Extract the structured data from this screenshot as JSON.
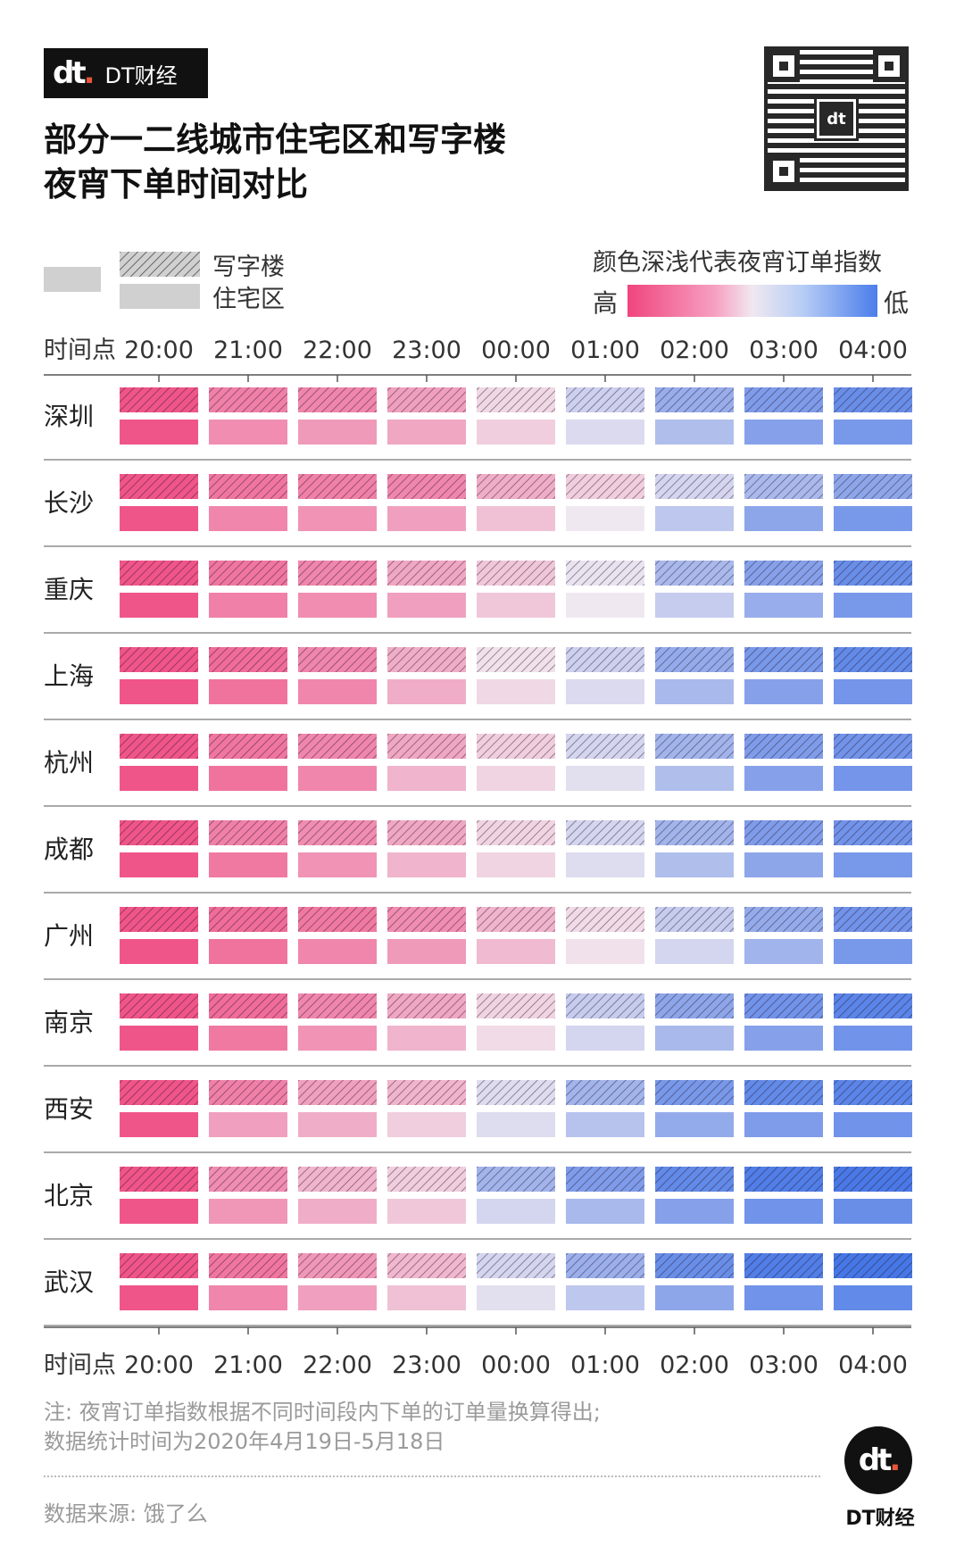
{
  "brand": {
    "logo": "dt",
    "name": "DT财经"
  },
  "title_line1": "部分一二线城市住宅区和写字楼",
  "title_line2": "夜宵下单时间对比",
  "legend": {
    "office": "写字楼",
    "residential": "住宅区"
  },
  "scale": {
    "title": "颜色深浅代表夜宵订单指数",
    "high": "高",
    "low": "低"
  },
  "footnote_line1": "注: 夜宵订单指数根据不同时间段内下单的订单量换算得出;",
  "footnote_line2": "数据统计时间为2020年4月19日-5月18日",
  "source": "数据来源: 饿了么",
  "badge_label": "DT财经",
  "colors": {
    "high": "#f0457e",
    "mid": "#f0e8f0",
    "low": "#3f72e6",
    "legend_gray": "#d0d0d0"
  },
  "chart_data": {
    "type": "heatmap",
    "x_label": "时间点",
    "times": [
      "20:00",
      "21:00",
      "22:00",
      "23:00",
      "00:00",
      "01:00",
      "02:00",
      "03:00",
      "04:00"
    ],
    "series_types": [
      "写字楼",
      "住宅区"
    ],
    "cities": [
      {
        "name": "深圳",
        "office": [
          0.95,
          0.82,
          0.8,
          0.72,
          0.55,
          0.4,
          0.25,
          0.18,
          0.12
        ],
        "residential": [
          0.95,
          0.78,
          0.74,
          0.7,
          0.58,
          0.44,
          0.32,
          0.2,
          0.16
        ]
      },
      {
        "name": "长沙",
        "office": [
          0.95,
          0.85,
          0.82,
          0.8,
          0.68,
          0.58,
          0.42,
          0.3,
          0.22
        ],
        "residential": [
          0.95,
          0.8,
          0.76,
          0.72,
          0.62,
          0.5,
          0.36,
          0.22,
          0.16
        ]
      },
      {
        "name": "重庆",
        "office": [
          0.95,
          0.85,
          0.8,
          0.7,
          0.6,
          0.48,
          0.3,
          0.2,
          0.12
        ],
        "residential": [
          0.95,
          0.82,
          0.78,
          0.72,
          0.6,
          0.5,
          0.38,
          0.25,
          0.16
        ]
      },
      {
        "name": "上海",
        "office": [
          0.95,
          0.88,
          0.8,
          0.68,
          0.52,
          0.4,
          0.24,
          0.16,
          0.1
        ],
        "residential": [
          0.95,
          0.86,
          0.8,
          0.68,
          0.55,
          0.44,
          0.3,
          0.2,
          0.15
        ]
      },
      {
        "name": "杭州",
        "office": [
          0.95,
          0.85,
          0.8,
          0.7,
          0.58,
          0.42,
          0.28,
          0.18,
          0.14
        ],
        "residential": [
          0.95,
          0.86,
          0.8,
          0.66,
          0.56,
          0.46,
          0.32,
          0.2,
          0.15
        ]
      },
      {
        "name": "成都",
        "office": [
          0.95,
          0.82,
          0.78,
          0.7,
          0.56,
          0.42,
          0.28,
          0.18,
          0.14
        ],
        "residential": [
          0.95,
          0.84,
          0.76,
          0.66,
          0.56,
          0.45,
          0.32,
          0.22,
          0.16
        ]
      },
      {
        "name": "广州",
        "office": [
          0.95,
          0.88,
          0.84,
          0.78,
          0.66,
          0.54,
          0.38,
          0.24,
          0.14
        ],
        "residential": [
          0.95,
          0.86,
          0.8,
          0.74,
          0.64,
          0.52,
          0.42,
          0.28,
          0.16
        ]
      },
      {
        "name": "南京",
        "office": [
          0.95,
          0.88,
          0.8,
          0.7,
          0.56,
          0.38,
          0.22,
          0.14,
          0.08
        ],
        "residential": [
          0.95,
          0.84,
          0.76,
          0.66,
          0.54,
          0.42,
          0.3,
          0.2,
          0.14
        ]
      },
      {
        "name": "西安",
        "office": [
          0.95,
          0.82,
          0.72,
          0.66,
          0.45,
          0.28,
          0.16,
          0.1,
          0.08
        ],
        "residential": [
          0.95,
          0.72,
          0.68,
          0.58,
          0.45,
          0.34,
          0.24,
          0.18,
          0.14
        ]
      },
      {
        "name": "北京",
        "office": [
          0.95,
          0.78,
          0.66,
          0.58,
          0.28,
          0.18,
          0.1,
          0.05,
          0.03
        ],
        "residential": [
          0.95,
          0.75,
          0.68,
          0.6,
          0.42,
          0.3,
          0.2,
          0.14,
          0.12
        ]
      },
      {
        "name": "武汉",
        "office": [
          0.95,
          0.85,
          0.75,
          0.65,
          0.42,
          0.26,
          0.12,
          0.05,
          0.02
        ],
        "residential": [
          0.95,
          0.8,
          0.72,
          0.62,
          0.46,
          0.36,
          0.22,
          0.14,
          0.1
        ]
      }
    ]
  }
}
